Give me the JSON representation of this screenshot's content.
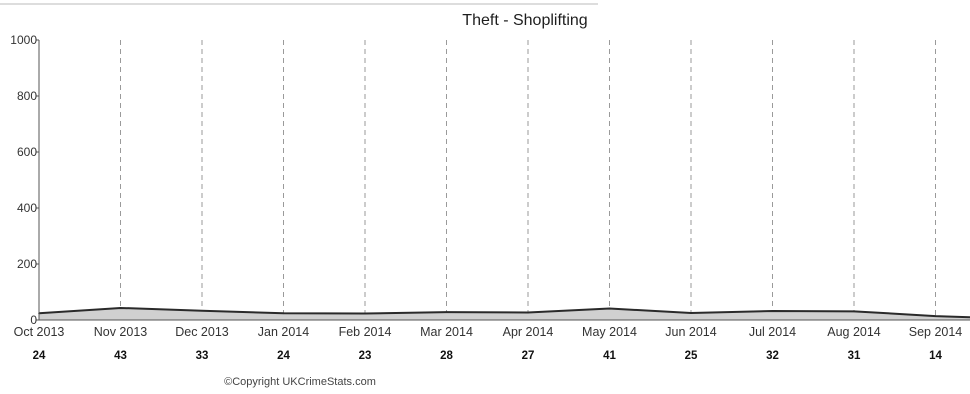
{
  "chart_data": {
    "type": "area",
    "title": "Theft - Shoplifting",
    "categories": [
      "Oct 2013",
      "Nov 2013",
      "Dec 2013",
      "Jan 2014",
      "Feb 2014",
      "Mar 2014",
      "Apr 2014",
      "May 2014",
      "Jun 2014",
      "Jul 2014",
      "Aug 2014",
      "Sep 2014"
    ],
    "values": [
      24,
      43,
      33,
      24,
      23,
      28,
      27,
      41,
      25,
      32,
      31,
      14
    ],
    "counts": [
      "24",
      "43",
      "33",
      "24",
      "23",
      "28",
      "27",
      "41",
      "25",
      "32",
      "31",
      "14"
    ],
    "ylim": [
      0,
      1000
    ],
    "yticks": [
      "0",
      "200",
      "400",
      "600",
      "800",
      "1000"
    ],
    "grid": "vertical dashed",
    "fill_color": "#d0d0d0",
    "line_color": "#2a2a2a"
  },
  "footer": {
    "copyright": "©Copyright UKCrimeStats.com"
  }
}
